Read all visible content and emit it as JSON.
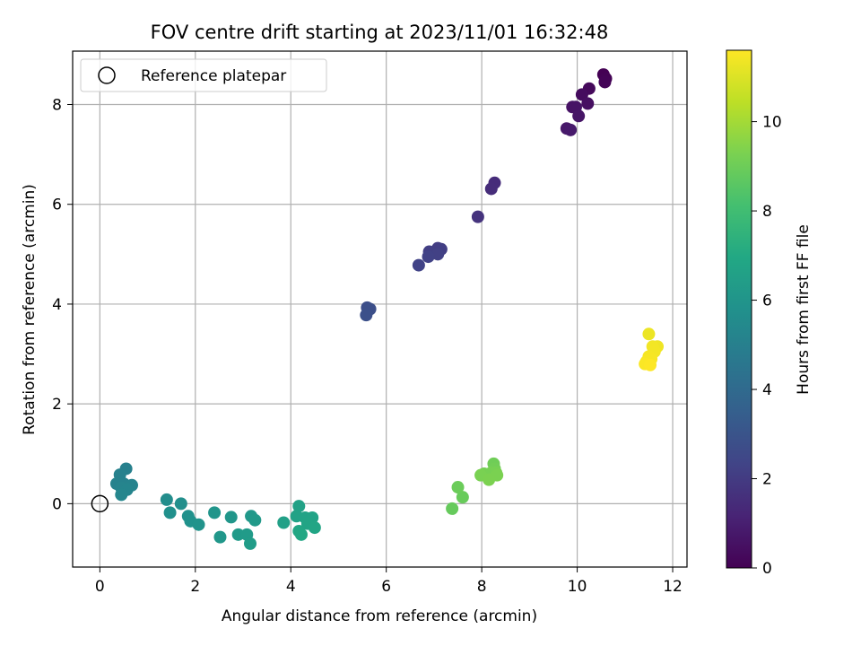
{
  "chart_data": {
    "type": "scatter",
    "title": "FOV centre drift starting at 2023/11/01 16:32:48",
    "xlabel": "Angular distance from reference (arcmin)",
    "ylabel": "Rotation from reference (arcmin)",
    "xlim": [
      -0.57,
      12.3
    ],
    "ylim": [
      -1.27,
      9.07
    ],
    "xticks": [
      0,
      2,
      4,
      6,
      8,
      10,
      12
    ],
    "yticks": [
      0,
      2,
      4,
      6,
      8
    ],
    "grid": true,
    "legend": {
      "position": "top-left",
      "entries": [
        "Reference platepar"
      ]
    },
    "reference_point": {
      "x": 0,
      "y": 0
    },
    "colorbar": {
      "label": "Hours from first FF file",
      "range": [
        0,
        11.6
      ],
      "ticks": [
        0,
        2,
        4,
        6,
        8,
        10
      ],
      "colormap": "viridis"
    },
    "points": [
      {
        "x": 10.55,
        "y": 8.6,
        "h": 0.0
      },
      {
        "x": 10.6,
        "y": 8.52,
        "h": 0.05
      },
      {
        "x": 10.58,
        "y": 8.45,
        "h": 0.1
      },
      {
        "x": 10.25,
        "y": 8.32,
        "h": 0.25
      },
      {
        "x": 10.1,
        "y": 8.2,
        "h": 0.35
      },
      {
        "x": 10.22,
        "y": 8.02,
        "h": 0.45
      },
      {
        "x": 9.9,
        "y": 7.95,
        "h": 0.55
      },
      {
        "x": 9.97,
        "y": 7.95,
        "h": 0.6
      },
      {
        "x": 10.03,
        "y": 7.77,
        "h": 0.65
      },
      {
        "x": 9.78,
        "y": 7.52,
        "h": 0.75
      },
      {
        "x": 9.86,
        "y": 7.49,
        "h": 0.8
      },
      {
        "x": 8.27,
        "y": 6.43,
        "h": 1.45
      },
      {
        "x": 8.2,
        "y": 6.31,
        "h": 1.5
      },
      {
        "x": 7.92,
        "y": 5.75,
        "h": 1.7
      },
      {
        "x": 7.08,
        "y": 5.12,
        "h": 2.05
      },
      {
        "x": 7.15,
        "y": 5.1,
        "h": 2.1
      },
      {
        "x": 6.9,
        "y": 5.05,
        "h": 2.15
      },
      {
        "x": 7.08,
        "y": 5.0,
        "h": 2.2
      },
      {
        "x": 6.88,
        "y": 4.95,
        "h": 2.25
      },
      {
        "x": 6.68,
        "y": 4.78,
        "h": 2.3
      },
      {
        "x": 5.6,
        "y": 3.93,
        "h": 2.75
      },
      {
        "x": 5.66,
        "y": 3.9,
        "h": 2.8
      },
      {
        "x": 5.58,
        "y": 3.78,
        "h": 2.85
      },
      {
        "x": 0.55,
        "y": 0.7,
        "h": 5.0
      },
      {
        "x": 0.42,
        "y": 0.58,
        "h": 5.05
      },
      {
        "x": 0.35,
        "y": 0.4,
        "h": 5.1
      },
      {
        "x": 0.5,
        "y": 0.4,
        "h": 5.12
      },
      {
        "x": 0.67,
        "y": 0.37,
        "h": 5.15
      },
      {
        "x": 0.45,
        "y": 0.32,
        "h": 5.2
      },
      {
        "x": 0.57,
        "y": 0.28,
        "h": 5.25
      },
      {
        "x": 0.45,
        "y": 0.18,
        "h": 5.3
      },
      {
        "x": 1.4,
        "y": 0.08,
        "h": 5.6
      },
      {
        "x": 1.7,
        "y": 0.0,
        "h": 5.7
      },
      {
        "x": 1.47,
        "y": -0.18,
        "h": 5.75
      },
      {
        "x": 1.85,
        "y": -0.25,
        "h": 5.8
      },
      {
        "x": 1.9,
        "y": -0.35,
        "h": 5.85
      },
      {
        "x": 2.07,
        "y": -0.42,
        "h": 5.9
      },
      {
        "x": 2.4,
        "y": -0.18,
        "h": 6.0
      },
      {
        "x": 2.75,
        "y": -0.27,
        "h": 6.05
      },
      {
        "x": 2.52,
        "y": -0.67,
        "h": 6.1
      },
      {
        "x": 3.17,
        "y": -0.25,
        "h": 6.15
      },
      {
        "x": 3.25,
        "y": -0.33,
        "h": 6.2
      },
      {
        "x": 2.9,
        "y": -0.62,
        "h": 6.25
      },
      {
        "x": 3.08,
        "y": -0.62,
        "h": 6.3
      },
      {
        "x": 3.15,
        "y": -0.8,
        "h": 6.35
      },
      {
        "x": 3.85,
        "y": -0.38,
        "h": 6.55
      },
      {
        "x": 4.17,
        "y": -0.05,
        "h": 6.6
      },
      {
        "x": 4.12,
        "y": -0.25,
        "h": 6.65
      },
      {
        "x": 4.3,
        "y": -0.28,
        "h": 6.7
      },
      {
        "x": 4.45,
        "y": -0.28,
        "h": 6.72
      },
      {
        "x": 4.35,
        "y": -0.4,
        "h": 6.75
      },
      {
        "x": 4.5,
        "y": -0.48,
        "h": 6.8
      },
      {
        "x": 4.17,
        "y": -0.55,
        "h": 6.85
      },
      {
        "x": 4.22,
        "y": -0.62,
        "h": 6.9
      },
      {
        "x": 7.38,
        "y": -0.1,
        "h": 8.85
      },
      {
        "x": 7.6,
        "y": 0.13,
        "h": 8.9
      },
      {
        "x": 7.5,
        "y": 0.33,
        "h": 8.95
      },
      {
        "x": 8.25,
        "y": 0.8,
        "h": 9.05
      },
      {
        "x": 8.27,
        "y": 0.7,
        "h": 9.1
      },
      {
        "x": 8.05,
        "y": 0.6,
        "h": 9.15
      },
      {
        "x": 8.2,
        "y": 0.62,
        "h": 9.2
      },
      {
        "x": 8.3,
        "y": 0.62,
        "h": 9.22
      },
      {
        "x": 7.98,
        "y": 0.57,
        "h": 9.25
      },
      {
        "x": 8.32,
        "y": 0.57,
        "h": 9.28
      },
      {
        "x": 8.15,
        "y": 0.48,
        "h": 9.3
      },
      {
        "x": 11.5,
        "y": 3.4,
        "h": 11.3
      },
      {
        "x": 11.68,
        "y": 3.15,
        "h": 11.35
      },
      {
        "x": 11.58,
        "y": 3.15,
        "h": 11.4
      },
      {
        "x": 11.62,
        "y": 3.05,
        "h": 11.42
      },
      {
        "x": 11.5,
        "y": 2.95,
        "h": 11.45
      },
      {
        "x": 11.55,
        "y": 2.9,
        "h": 11.48
      },
      {
        "x": 11.45,
        "y": 2.85,
        "h": 11.5
      },
      {
        "x": 11.42,
        "y": 2.8,
        "h": 11.55
      },
      {
        "x": 11.53,
        "y": 2.78,
        "h": 11.6
      }
    ]
  }
}
